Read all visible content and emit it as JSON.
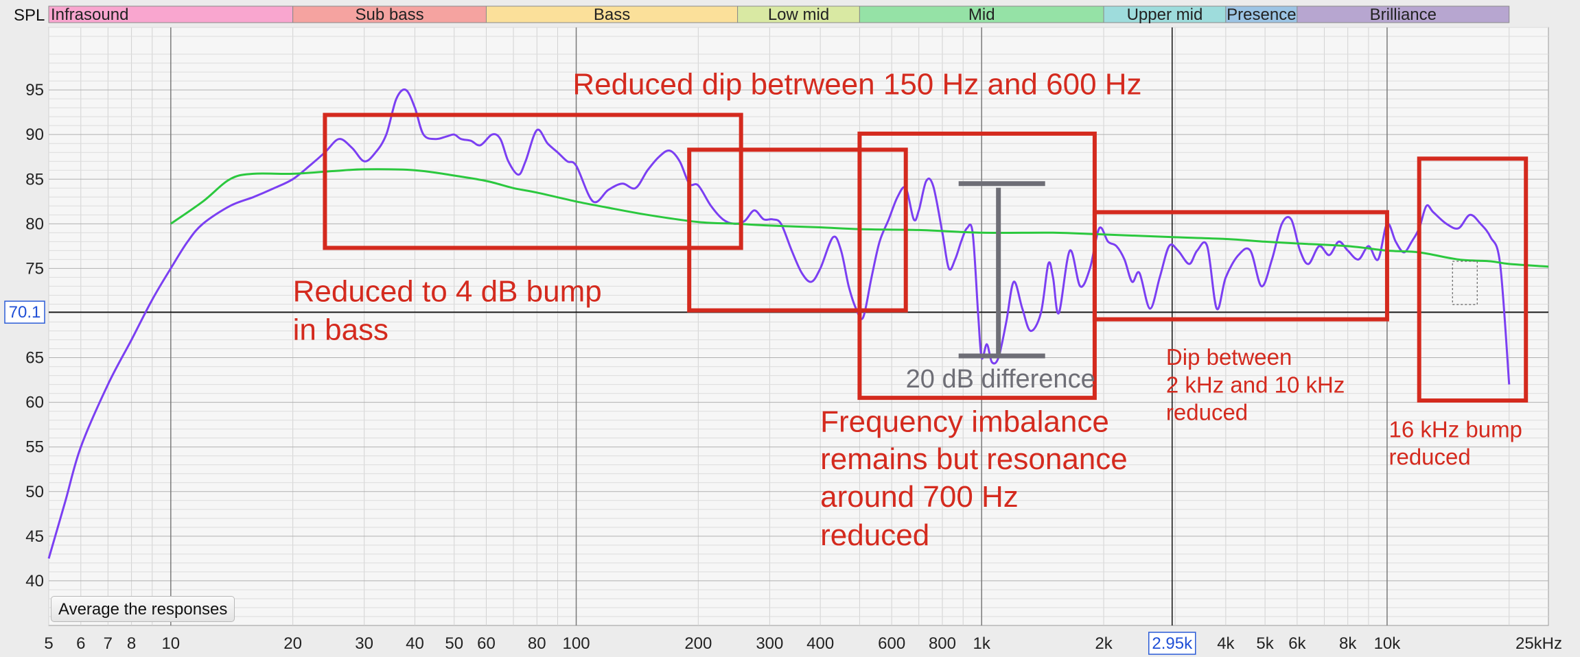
{
  "chart_data": {
    "type": "line",
    "xscale": "log",
    "xlim": [
      5,
      25000
    ],
    "ylim": [
      35,
      102
    ],
    "ylabel": "SPL",
    "yticks": [
      40,
      45,
      50,
      55,
      60,
      65,
      70,
      75,
      80,
      85,
      90,
      95
    ],
    "xticks": [
      {
        "v": 5,
        "label": "5"
      },
      {
        "v": 6,
        "label": "6"
      },
      {
        "v": 7,
        "label": "7"
      },
      {
        "v": 8,
        "label": "8"
      },
      {
        "v": 10,
        "label": "10"
      },
      {
        "v": 20,
        "label": "20"
      },
      {
        "v": 30,
        "label": "30"
      },
      {
        "v": 40,
        "label": "40"
      },
      {
        "v": 50,
        "label": "50"
      },
      {
        "v": 60,
        "label": "60"
      },
      {
        "v": 80,
        "label": "80"
      },
      {
        "v": 100,
        "label": "100"
      },
      {
        "v": 200,
        "label": "200"
      },
      {
        "v": 300,
        "label": "300"
      },
      {
        "v": 400,
        "label": "400"
      },
      {
        "v": 600,
        "label": "600"
      },
      {
        "v": 800,
        "label": "800"
      },
      {
        "v": 1000,
        "label": "1k"
      },
      {
        "v": 2000,
        "label": "2k"
      },
      {
        "v": 4000,
        "label": "4k"
      },
      {
        "v": 5000,
        "label": "5k"
      },
      {
        "v": 6000,
        "label": "6k"
      },
      {
        "v": 8000,
        "label": "8k"
      },
      {
        "v": 10000,
        "label": "10k"
      },
      {
        "v": 25000,
        "label": "25kHz"
      }
    ],
    "cursor": {
      "x": 2950,
      "x_label": "2.95k",
      "y": 70.1,
      "y_label": "70.1"
    },
    "bands": [
      {
        "name": "Infrasound",
        "from": 5,
        "to": 20,
        "color": "#f9a6cf"
      },
      {
        "name": "Sub bass",
        "from": 20,
        "to": 60,
        "color": "#f5a3a0"
      },
      {
        "name": "Bass",
        "from": 60,
        "to": 250,
        "color": "#fbe09a"
      },
      {
        "name": "Low mid",
        "from": 250,
        "to": 500,
        "color": "#d9e9a3"
      },
      {
        "name": "Mid",
        "from": 500,
        "to": 2000,
        "color": "#95e2a6"
      },
      {
        "name": "Upper mid",
        "from": 2000,
        "to": 4000,
        "color": "#9edcdc"
      },
      {
        "name": "Presence",
        "from": 4000,
        "to": 6000,
        "color": "#9cc4e4"
      },
      {
        "name": "Brilliance",
        "from": 6000,
        "to": 20000,
        "color": "#b7a6d0"
      }
    ],
    "series": [
      {
        "color": "#7b3ff2",
        "points": [
          [
            5,
            42.5
          ],
          [
            5.5,
            49
          ],
          [
            6,
            55
          ],
          [
            7,
            62
          ],
          [
            8,
            67
          ],
          [
            9,
            71.5
          ],
          [
            10,
            75
          ],
          [
            11,
            78
          ],
          [
            12,
            80
          ],
          [
            14,
            82
          ],
          [
            16,
            83
          ],
          [
            18,
            84
          ],
          [
            20,
            85
          ],
          [
            22,
            86.5
          ],
          [
            24,
            88
          ],
          [
            26,
            89.5
          ],
          [
            28,
            88.5
          ],
          [
            30,
            87
          ],
          [
            32,
            88
          ],
          [
            34,
            90
          ],
          [
            36,
            94
          ],
          [
            38,
            95
          ],
          [
            40,
            93
          ],
          [
            42,
            90
          ],
          [
            45,
            89.5
          ],
          [
            48,
            89.8
          ],
          [
            50,
            90
          ],
          [
            52,
            89.5
          ],
          [
            55,
            89.3
          ],
          [
            58,
            88.8
          ],
          [
            62,
            90
          ],
          [
            65,
            89.5
          ],
          [
            68,
            87
          ],
          [
            72,
            85.5
          ],
          [
            75,
            87
          ],
          [
            80,
            90.5
          ],
          [
            85,
            89
          ],
          [
            90,
            88
          ],
          [
            95,
            87
          ],
          [
            100,
            86.5
          ],
          [
            110,
            82.5
          ],
          [
            120,
            83.8
          ],
          [
            130,
            84.5
          ],
          [
            140,
            84
          ],
          [
            150,
            86
          ],
          [
            160,
            87.5
          ],
          [
            170,
            88.2
          ],
          [
            180,
            87
          ],
          [
            190,
            84.5
          ],
          [
            200,
            84.3
          ],
          [
            215,
            82
          ],
          [
            230,
            80.5
          ],
          [
            245,
            80
          ],
          [
            260,
            80.3
          ],
          [
            275,
            81.5
          ],
          [
            290,
            80.5
          ],
          [
            305,
            80.5
          ],
          [
            320,
            80
          ],
          [
            340,
            77
          ],
          [
            360,
            74.5
          ],
          [
            380,
            73.5
          ],
          [
            400,
            75
          ],
          [
            430,
            78.5
          ],
          [
            450,
            77
          ],
          [
            470,
            73
          ],
          [
            490,
            70.5
          ],
          [
            510,
            69.5
          ],
          [
            535,
            74
          ],
          [
            560,
            78
          ],
          [
            590,
            80.5
          ],
          [
            620,
            83
          ],
          [
            650,
            84
          ],
          [
            680,
            80.5
          ],
          [
            700,
            81.5
          ],
          [
            730,
            84.8
          ],
          [
            760,
            84.2
          ],
          [
            800,
            79
          ],
          [
            830,
            75
          ],
          [
            860,
            76
          ],
          [
            890,
            78
          ],
          [
            920,
            79.5
          ],
          [
            950,
            79
          ],
          [
            980,
            70
          ],
          [
            1000,
            65
          ],
          [
            1030,
            66.5
          ],
          [
            1060,
            64.5
          ],
          [
            1100,
            65
          ],
          [
            1150,
            69
          ],
          [
            1200,
            73.5
          ],
          [
            1260,
            70.5
          ],
          [
            1320,
            68
          ],
          [
            1400,
            70
          ],
          [
            1460,
            75.5
          ],
          [
            1500,
            74
          ],
          [
            1550,
            70
          ],
          [
            1650,
            77
          ],
          [
            1750,
            73
          ],
          [
            1850,
            75
          ],
          [
            1950,
            79.5
          ],
          [
            2050,
            78
          ],
          [
            2150,
            77.5
          ],
          [
            2250,
            76
          ],
          [
            2350,
            73.5
          ],
          [
            2450,
            74.5
          ],
          [
            2600,
            70.5
          ],
          [
            2750,
            74
          ],
          [
            2900,
            77.5
          ],
          [
            3050,
            77
          ],
          [
            3250,
            75.5
          ],
          [
            3400,
            77
          ],
          [
            3600,
            77.5
          ],
          [
            3800,
            70.5
          ],
          [
            4000,
            74
          ],
          [
            4300,
            76.5
          ],
          [
            4600,
            77
          ],
          [
            4900,
            73
          ],
          [
            5200,
            76
          ],
          [
            5500,
            80
          ],
          [
            5800,
            80.5
          ],
          [
            6100,
            77
          ],
          [
            6400,
            75.5
          ],
          [
            6800,
            77.5
          ],
          [
            7200,
            76.5
          ],
          [
            7600,
            78
          ],
          [
            8000,
            77
          ],
          [
            8500,
            76
          ],
          [
            9000,
            77.5
          ],
          [
            9500,
            76
          ],
          [
            10000,
            80
          ],
          [
            10500,
            78
          ],
          [
            11000,
            76.8
          ],
          [
            11500,
            78
          ],
          [
            12000,
            79.5
          ],
          [
            12500,
            82
          ],
          [
            13000,
            81.3
          ],
          [
            14000,
            80
          ],
          [
            15000,
            79.5
          ],
          [
            16000,
            81
          ],
          [
            17000,
            80
          ],
          [
            18000,
            78.5
          ],
          [
            19000,
            75.5
          ],
          [
            20000,
            62
          ]
        ]
      },
      {
        "color": "#2bc83e",
        "points": [
          [
            10,
            80
          ],
          [
            12,
            82.5
          ],
          [
            14,
            85
          ],
          [
            16,
            85.6
          ],
          [
            20,
            85.6
          ],
          [
            25,
            85.9
          ],
          [
            30,
            86.1
          ],
          [
            40,
            86
          ],
          [
            50,
            85.4
          ],
          [
            60,
            84.8
          ],
          [
            70,
            84
          ],
          [
            80,
            83.5
          ],
          [
            100,
            82.5
          ],
          [
            120,
            81.8
          ],
          [
            150,
            81
          ],
          [
            200,
            80.2
          ],
          [
            250,
            80
          ],
          [
            300,
            79.8
          ],
          [
            400,
            79.6
          ],
          [
            500,
            79.4
          ],
          [
            700,
            79.3
          ],
          [
            1000,
            79
          ],
          [
            1500,
            79
          ],
          [
            2000,
            78.8
          ],
          [
            3000,
            78.5
          ],
          [
            4000,
            78.3
          ],
          [
            5000,
            78
          ],
          [
            6000,
            77.8
          ],
          [
            8000,
            77.5
          ],
          [
            10000,
            77
          ],
          [
            12000,
            76.8
          ],
          [
            15000,
            76
          ],
          [
            18000,
            75.8
          ],
          [
            20000,
            75.5
          ],
          [
            25000,
            75.2
          ]
        ]
      }
    ],
    "reference_line": {
      "y": 70.1,
      "color": "#000000"
    },
    "measure_marker": {
      "x": 1100,
      "y_top": 84.5,
      "y_bottom": 65.2,
      "label": "20 dB difference",
      "color": "#6e6e76"
    },
    "annotation_color": "#d42a1e",
    "boxes": [
      {
        "x1": 24,
        "x2": 255,
        "y1": 92.2,
        "y2": 77.3
      },
      {
        "x1": 190,
        "x2": 650,
        "y1": 88.3,
        "y2": 70.3
      },
      {
        "x1": 500,
        "x2": 1900,
        "y1": 90.1,
        "y2": 60.5
      },
      {
        "x1": 1900,
        "x2": 10000,
        "y1": 81.3,
        "y2": 69.3
      },
      {
        "x1": 12000,
        "x2": 22000,
        "y1": 87.3,
        "y2": 60.2
      }
    ],
    "annotations": [
      {
        "text": "Reduced dip betrween 150 Hz and 600 Hz",
        "x": 98,
        "y": 94.5,
        "size": "large"
      },
      {
        "text": "Reduced to 4 dB bump",
        "x": 20,
        "y": 71.3,
        "size": "large"
      },
      {
        "text": "in bass",
        "x": 20,
        "y": 67,
        "size": "large"
      },
      {
        "text": "Frequency imbalance",
        "x": 400,
        "y": 56.7,
        "size": "large"
      },
      {
        "text": "remains but resonance",
        "x": 400,
        "y": 52.5,
        "size": "large"
      },
      {
        "text": "around 700 Hz",
        "x": 400,
        "y": 48.3,
        "size": "large"
      },
      {
        "text": "reduced",
        "x": 400,
        "y": 44,
        "size": "large"
      },
      {
        "text": "Dip between",
        "x": 2850,
        "y": 64.2,
        "size": "small"
      },
      {
        "text": "2 kHz and 10 kHz",
        "x": 2850,
        "y": 61.1,
        "size": "small"
      },
      {
        "text": "reduced",
        "x": 2850,
        "y": 58,
        "size": "small"
      },
      {
        "text": "16 kHz bump",
        "x": 10100,
        "y": 56.1,
        "size": "small"
      },
      {
        "text": "reduced",
        "x": 10100,
        "y": 53,
        "size": "small"
      }
    ]
  },
  "button": {
    "average_label": "Average the responses"
  }
}
